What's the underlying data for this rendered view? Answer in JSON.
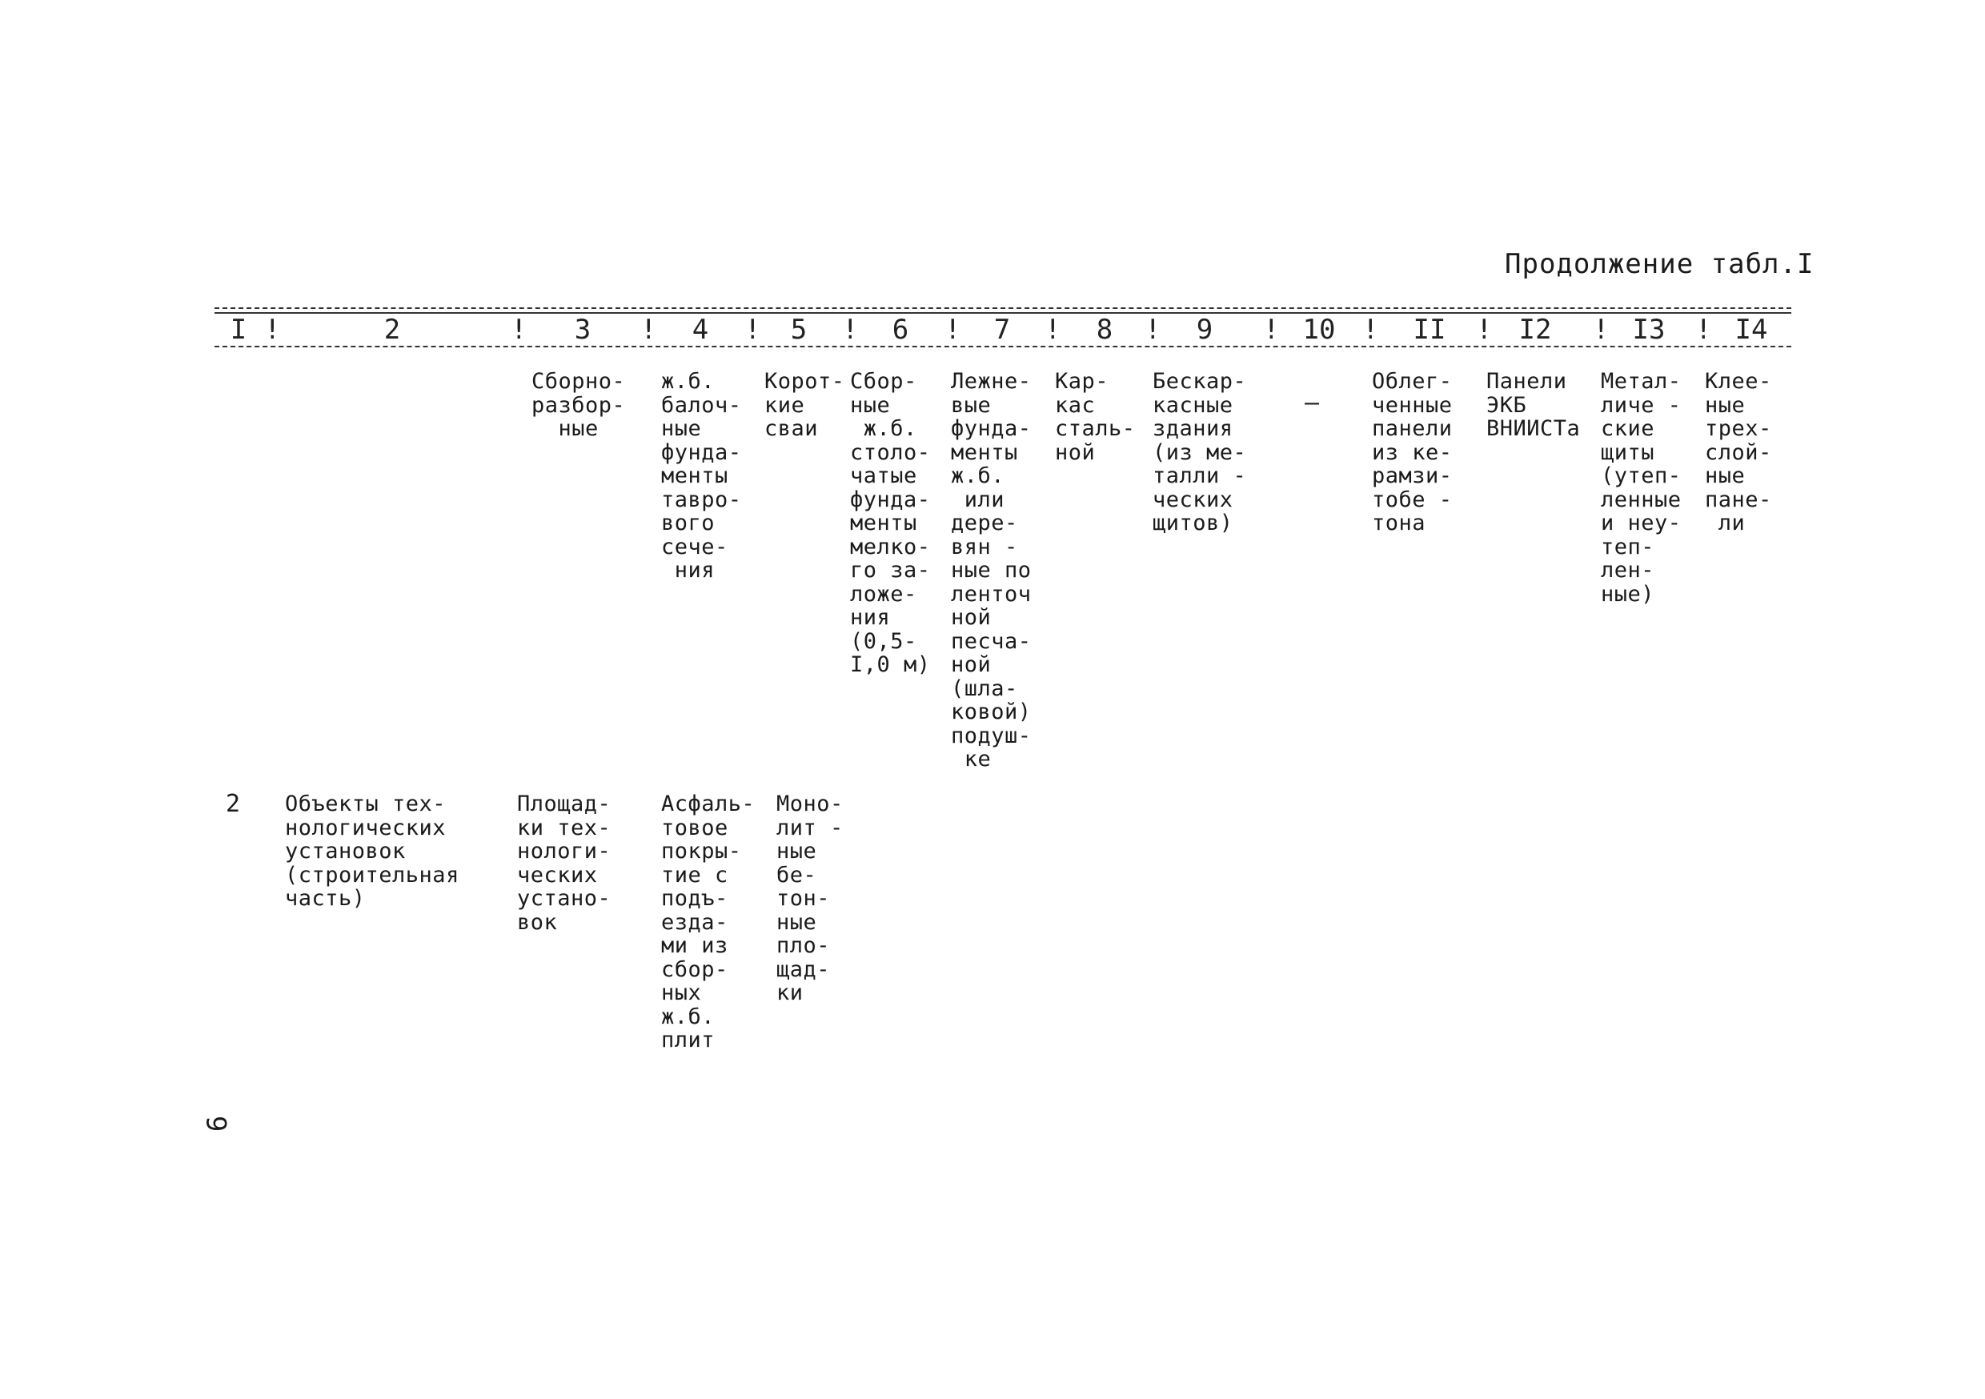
{
  "caption": "Продолжение табл.I",
  "header_numbers": [
    "I",
    "2",
    "3",
    "4",
    "5",
    "6",
    "7",
    "8",
    "9",
    "10",
    "II",
    "I2",
    "I3",
    "I4"
  ],
  "row1": {
    "col3": "Сборно-\nразбор-\n  ные",
    "col4": "ж.б.\nбалоч-\nные\nфунда-\nменты\nтавро-\nвого\nсече-\n ния",
    "col5": "Корот-\nкие\nсваи",
    "col6": "Сбор-\nные\n ж.б.\nстоло-\nчатые\nфунда-\nменты\nмелко-\nго за-\nложе-\nния\n(0,5-\nI,0 м)",
    "col7": "Лежне-\nвые\nфунда-\nменты\nж.б.\n или\nдере-\nвян -\nные по\nленточ\nной\nпесча-\nной\n(шла-\nковой)\nподуш-\n ке",
    "col8": "Кар-\nкас\nсталь-\nной",
    "col9": "Бескар-\nкасные\nздания\n(из ме-\nталли -\nческих\nщитов)",
    "col10": "–",
    "col11": "Облег-\nченные\nпанели\nиз ке-\nрамзи-\nтобе -\nтона",
    "col12": "Панели\nЭКБ\nВНИИСТа",
    "col13": "Метал-\nличе -\nские\nщиты\n(утеп-\nленные\nи неу-\nтеп-\nлен-\nные)",
    "col14": "Клее-\nные\nтрех-\nслой-\nные\nпане-\n ли"
  },
  "row2": {
    "col1": "2",
    "col2": "Объекты тех-\nнологических\nустановок\n(строительная\nчасть)",
    "col3": "Площад-\nки тех-\nнологи-\nческих\nустано-\nвок",
    "col4": "Асфаль-\nтовое\nпокры-\nтие с\nподъ-\nезда-\nми из\nсбор-\nных\nж.б.\nплит",
    "col5": "Моно-\nлит -\nные\nбе-\nтон-\nные\nпло-\nщад-\nки"
  },
  "page_number": "6"
}
